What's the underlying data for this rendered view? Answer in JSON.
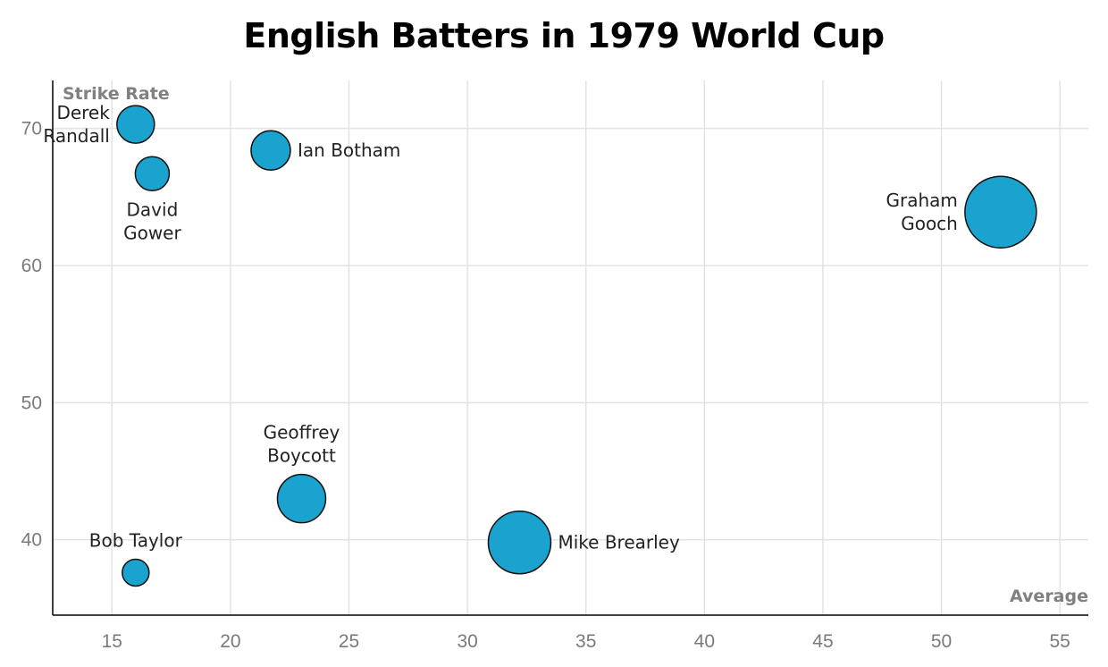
{
  "chart_data": {
    "type": "scatter",
    "title": "English Batters in 1979 World Cup",
    "xlabel": "Average",
    "ylabel": "Strike Rate",
    "xlim": [
      12.5,
      56.2
    ],
    "ylim": [
      34.5,
      73.5
    ],
    "xticks": [
      15,
      20,
      25,
      30,
      35,
      40,
      45,
      50,
      55
    ],
    "yticks": [
      40,
      50,
      60,
      70
    ],
    "grid": true,
    "bubble_color": "#1aa3cf",
    "bubble_stroke": "#111111",
    "points": [
      {
        "name": "Derek Randall",
        "label_lines": [
          "Derek",
          "Randall"
        ],
        "label_side": "left",
        "x": 16.0,
        "y": 70.3,
        "size": 21
      },
      {
        "name": "David Gower",
        "label_lines": [
          "David",
          "Gower"
        ],
        "label_side": "below",
        "x": 16.7,
        "y": 66.7,
        "size": 19
      },
      {
        "name": "Ian Botham",
        "label_lines": [
          "Ian Botham"
        ],
        "label_side": "right",
        "x": 21.7,
        "y": 68.4,
        "size": 22
      },
      {
        "name": "Graham Gooch",
        "label_lines": [
          "Graham",
          "Gooch"
        ],
        "label_side": "left",
        "x": 52.5,
        "y": 63.9,
        "size": 40
      },
      {
        "name": "Geoffrey Boycott",
        "label_lines": [
          "Geoffrey",
          "Boycott"
        ],
        "label_side": "above",
        "x": 23.0,
        "y": 43.0,
        "size": 27
      },
      {
        "name": "Mike Brearley",
        "label_lines": [
          "Mike Brearley"
        ],
        "label_side": "right",
        "x": 32.2,
        "y": 39.8,
        "size": 35
      },
      {
        "name": "Bob Taylor",
        "label_lines": [
          "Bob Taylor"
        ],
        "label_side": "above",
        "x": 16.0,
        "y": 37.6,
        "size": 15
      }
    ]
  }
}
